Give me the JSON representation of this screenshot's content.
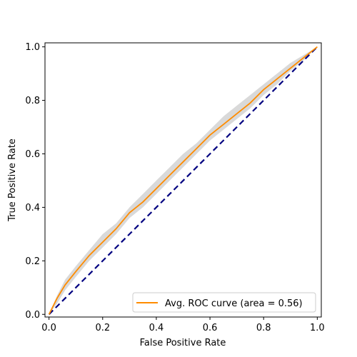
{
  "chart_data": {
    "type": "line",
    "xlabel": "False Positive Rate",
    "ylabel": "True Positive Rate",
    "xlim": [
      -0.015,
      1.015
    ],
    "ylim": [
      -0.01,
      1.015
    ],
    "xticks": [
      "0.0",
      "0.2",
      "0.4",
      "0.6",
      "0.8",
      "1.0"
    ],
    "yticks": [
      "0.0",
      "0.2",
      "0.4",
      "0.6",
      "0.8",
      "1.0"
    ],
    "grid": false,
    "legend_position": "lower-right",
    "series": [
      {
        "name": "Avg. ROC curve (area = 0.56)",
        "color": "#ff8c00",
        "x": [
          0.0,
          0.03,
          0.06,
          0.1,
          0.15,
          0.2,
          0.25,
          0.3,
          0.35,
          0.4,
          0.45,
          0.5,
          0.55,
          0.6,
          0.65,
          0.7,
          0.75,
          0.8,
          0.85,
          0.9,
          0.95,
          1.0
        ],
        "y": [
          0.0,
          0.06,
          0.11,
          0.16,
          0.22,
          0.27,
          0.32,
          0.38,
          0.42,
          0.47,
          0.52,
          0.57,
          0.62,
          0.67,
          0.71,
          0.75,
          0.79,
          0.84,
          0.88,
          0.92,
          0.96,
          1.0
        ],
        "band_lower": [
          0.0,
          0.04,
          0.09,
          0.14,
          0.2,
          0.25,
          0.3,
          0.36,
          0.4,
          0.45,
          0.5,
          0.55,
          0.6,
          0.65,
          0.69,
          0.73,
          0.77,
          0.82,
          0.86,
          0.91,
          0.95,
          1.0
        ],
        "band_upper": [
          0.0,
          0.07,
          0.13,
          0.18,
          0.24,
          0.3,
          0.34,
          0.4,
          0.45,
          0.5,
          0.55,
          0.6,
          0.64,
          0.69,
          0.74,
          0.78,
          0.82,
          0.86,
          0.9,
          0.94,
          0.97,
          1.0
        ]
      },
      {
        "color": "#000080",
        "style": "dashed",
        "x": [
          0.0,
          1.0
        ],
        "y": [
          0.0,
          1.0
        ]
      }
    ]
  }
}
